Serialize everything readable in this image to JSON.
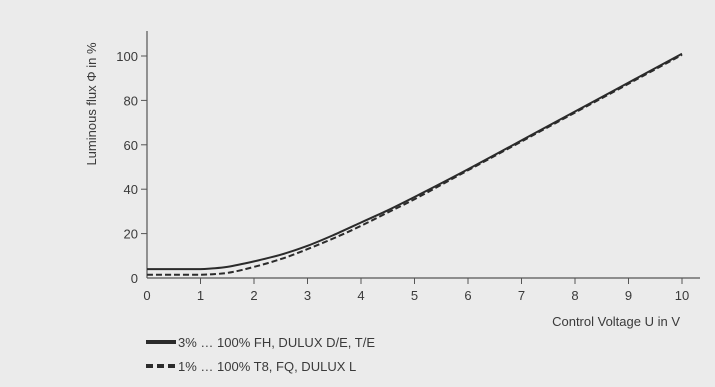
{
  "chart_data": {
    "type": "line",
    "ylabel": "Luminous flux Φ in %",
    "xlabel": "Control Voltage U in V",
    "xlim": [
      0,
      10
    ],
    "ylim": [
      0,
      110
    ],
    "x_ticks": [
      0,
      1,
      2,
      3,
      4,
      5,
      6,
      7,
      8,
      9,
      10
    ],
    "y_ticks": [
      0,
      20,
      40,
      60,
      80,
      100
    ],
    "grid": false,
    "legend_position": "bottom-left",
    "series": [
      {
        "name": "3% … 100% FH, DULUX D/E, T/E",
        "style": "solid",
        "color": "#2b2b2b",
        "x": [
          0,
          0.5,
          1.0,
          1.2,
          1.5,
          2.0,
          2.5,
          3.0,
          3.5,
          4.0,
          4.5,
          5.0,
          6.0,
          7.0,
          8.0,
          9.0,
          10.0
        ],
        "y": [
          4,
          4,
          4,
          4.3,
          5,
          7.5,
          10.5,
          14.5,
          19.5,
          25,
          30.5,
          36.5,
          49,
          62,
          75,
          88,
          101
        ]
      },
      {
        "name": "1% … 100% T8, FQ, DULUX L",
        "style": "dashed",
        "color": "#2b2b2b",
        "x": [
          0,
          0.5,
          1.0,
          1.3,
          1.6,
          2.0,
          2.5,
          3.0,
          3.5,
          4.0,
          4.5,
          5.0,
          6.0,
          7.0,
          8.0,
          9.0,
          10.0
        ],
        "y": [
          1.5,
          1.5,
          1.5,
          1.8,
          2.7,
          5,
          8.5,
          13,
          18,
          23.5,
          29.5,
          35.5,
          48.5,
          61.5,
          74.5,
          87.5,
          100.5
        ]
      }
    ]
  }
}
